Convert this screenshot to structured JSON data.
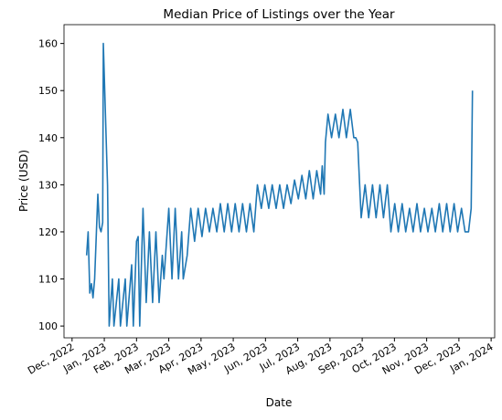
{
  "chart_data": {
    "type": "line",
    "title": "Median Price of Listings over the Year",
    "xlabel": "Date",
    "ylabel": "Price (USD)",
    "xlim": [
      -0.25,
      13.11
    ],
    "ylim": [
      97.5,
      164
    ],
    "xticks": [
      {
        "value": 0,
        "label": "Dec, 2022"
      },
      {
        "value": 1,
        "label": "Jan, 2023"
      },
      {
        "value": 2,
        "label": "Feb, 2023"
      },
      {
        "value": 3,
        "label": "Mar, 2023"
      },
      {
        "value": 4,
        "label": "Apr, 2023"
      },
      {
        "value": 5,
        "label": "May, 2023"
      },
      {
        "value": 6,
        "label": "Jun, 2023"
      },
      {
        "value": 7,
        "label": "Jul, 2023"
      },
      {
        "value": 8,
        "label": "Aug, 2023"
      },
      {
        "value": 9,
        "label": "Sep, 2023"
      },
      {
        "value": 10,
        "label": "Oct, 2023"
      },
      {
        "value": 11,
        "label": "Nov, 2023"
      },
      {
        "value": 12,
        "label": "Dec, 2023"
      },
      {
        "value": 13,
        "label": "Jan, 2024"
      }
    ],
    "yticks": [
      100,
      110,
      120,
      130,
      140,
      150,
      160
    ],
    "color": "#1f77b4",
    "x": [
      0.45,
      0.5,
      0.55,
      0.6,
      0.65,
      0.7,
      0.8,
      0.85,
      0.9,
      0.95,
      0.97,
      1.1,
      1.15,
      1.25,
      1.3,
      1.45,
      1.5,
      1.65,
      1.7,
      1.85,
      1.9,
      2.0,
      2.05,
      2.1,
      2.2,
      2.3,
      2.4,
      2.5,
      2.6,
      2.7,
      2.8,
      2.85,
      3.0,
      3.1,
      3.2,
      3.3,
      3.4,
      3.45,
      3.57,
      3.68,
      3.8,
      3.91,
      4.03,
      4.14,
      4.26,
      4.37,
      4.49,
      4.6,
      4.72,
      4.83,
      4.95,
      5.06,
      5.18,
      5.29,
      5.41,
      5.52,
      5.64,
      5.75,
      5.87,
      5.98,
      6.1,
      6.21,
      6.33,
      6.44,
      6.56,
      6.67,
      6.79,
      6.9,
      7.02,
      7.13,
      7.25,
      7.36,
      7.48,
      7.59,
      7.71,
      7.76,
      7.82,
      7.86,
      7.94,
      8.05,
      8.17,
      8.28,
      8.4,
      8.51,
      8.63,
      8.74,
      8.8,
      8.86,
      8.92,
      8.97,
      9.09,
      9.2,
      9.32,
      9.43,
      9.55,
      9.66,
      9.78,
      9.89,
      10.01,
      10.12,
      10.24,
      10.35,
      10.47,
      10.58,
      10.7,
      10.81,
      10.93,
      11.04,
      11.16,
      11.27,
      11.39,
      11.5,
      11.62,
      11.73,
      11.85,
      11.96,
      12.08,
      12.19,
      12.3,
      12.38,
      12.42
    ],
    "values": [
      115,
      120,
      107,
      109,
      106,
      110,
      128,
      121,
      120,
      122,
      160,
      130,
      100,
      110,
      100,
      110,
      100,
      110,
      100,
      113,
      100,
      118,
      119,
      100,
      125,
      105,
      120,
      105,
      120,
      105,
      115,
      110,
      125,
      110,
      125,
      110,
      120,
      110,
      115,
      125,
      118,
      125,
      119,
      125,
      120,
      125,
      120,
      126,
      120,
      126,
      120,
      126,
      120,
      126,
      120,
      126,
      120,
      130,
      125,
      130,
      125,
      130,
      125,
      130,
      125,
      130,
      126,
      131,
      127,
      132,
      127,
      133,
      127,
      133,
      128,
      134,
      128,
      139,
      145,
      140,
      145,
      140,
      146,
      140,
      146,
      140,
      140,
      139,
      130,
      123,
      130,
      123,
      130,
      123,
      130,
      123,
      130,
      120,
      126,
      120,
      126,
      120,
      125,
      120,
      126,
      120,
      125,
      120,
      125,
      120,
      126,
      120,
      126,
      120,
      126,
      120,
      125,
      120,
      120,
      125,
      150
    ]
  }
}
